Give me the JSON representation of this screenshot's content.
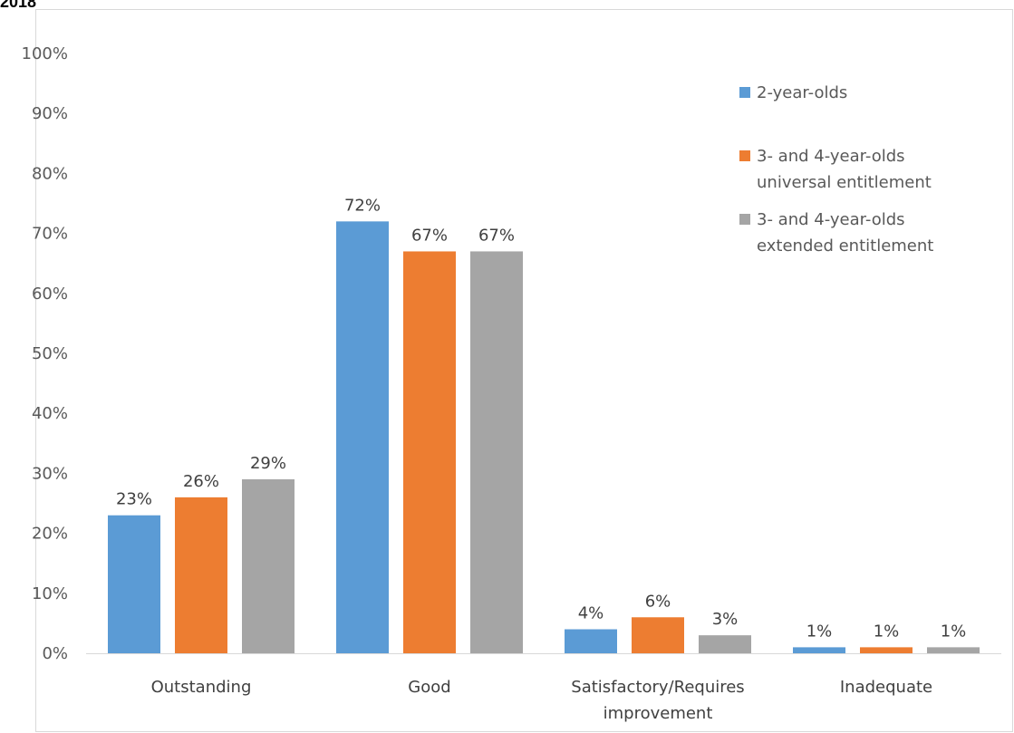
{
  "corner_title": "2018",
  "chart_data": {
    "type": "bar",
    "title": "",
    "xlabel": "",
    "ylabel": "",
    "categories": [
      [
        "Outstanding"
      ],
      [
        "Good"
      ],
      [
        "Satisfactory/Requires",
        "improvement"
      ],
      [
        "Inadequate"
      ]
    ],
    "series": [
      {
        "name": [
          "2-year-olds"
        ],
        "color": "#5B9BD5",
        "values": [
          23,
          72,
          4,
          1
        ]
      },
      {
        "name": [
          "3- and 4-year-olds",
          "universal entitlement"
        ],
        "color": "#ED7D31",
        "values": [
          26,
          67,
          6,
          1
        ]
      },
      {
        "name": [
          "3- and 4-year-olds",
          "extended entitlement"
        ],
        "color": "#A5A5A5",
        "values": [
          29,
          67,
          3,
          1
        ]
      }
    ],
    "data_labels": [
      [
        "23%",
        "72%",
        "4%",
        "1%"
      ],
      [
        "26%",
        "67%",
        "6%",
        "1%"
      ],
      [
        "29%",
        "67%",
        "3%",
        "1%"
      ]
    ],
    "ylim": [
      0,
      100
    ],
    "yticks": [
      0,
      10,
      20,
      30,
      40,
      50,
      60,
      70,
      80,
      90,
      100
    ],
    "ytick_labels": [
      "0%",
      "10%",
      "20%",
      "30%",
      "40%",
      "50%",
      "60%",
      "70%",
      "80%",
      "90%",
      "100%"
    ],
    "grid": false,
    "legend_position": "top-right"
  }
}
